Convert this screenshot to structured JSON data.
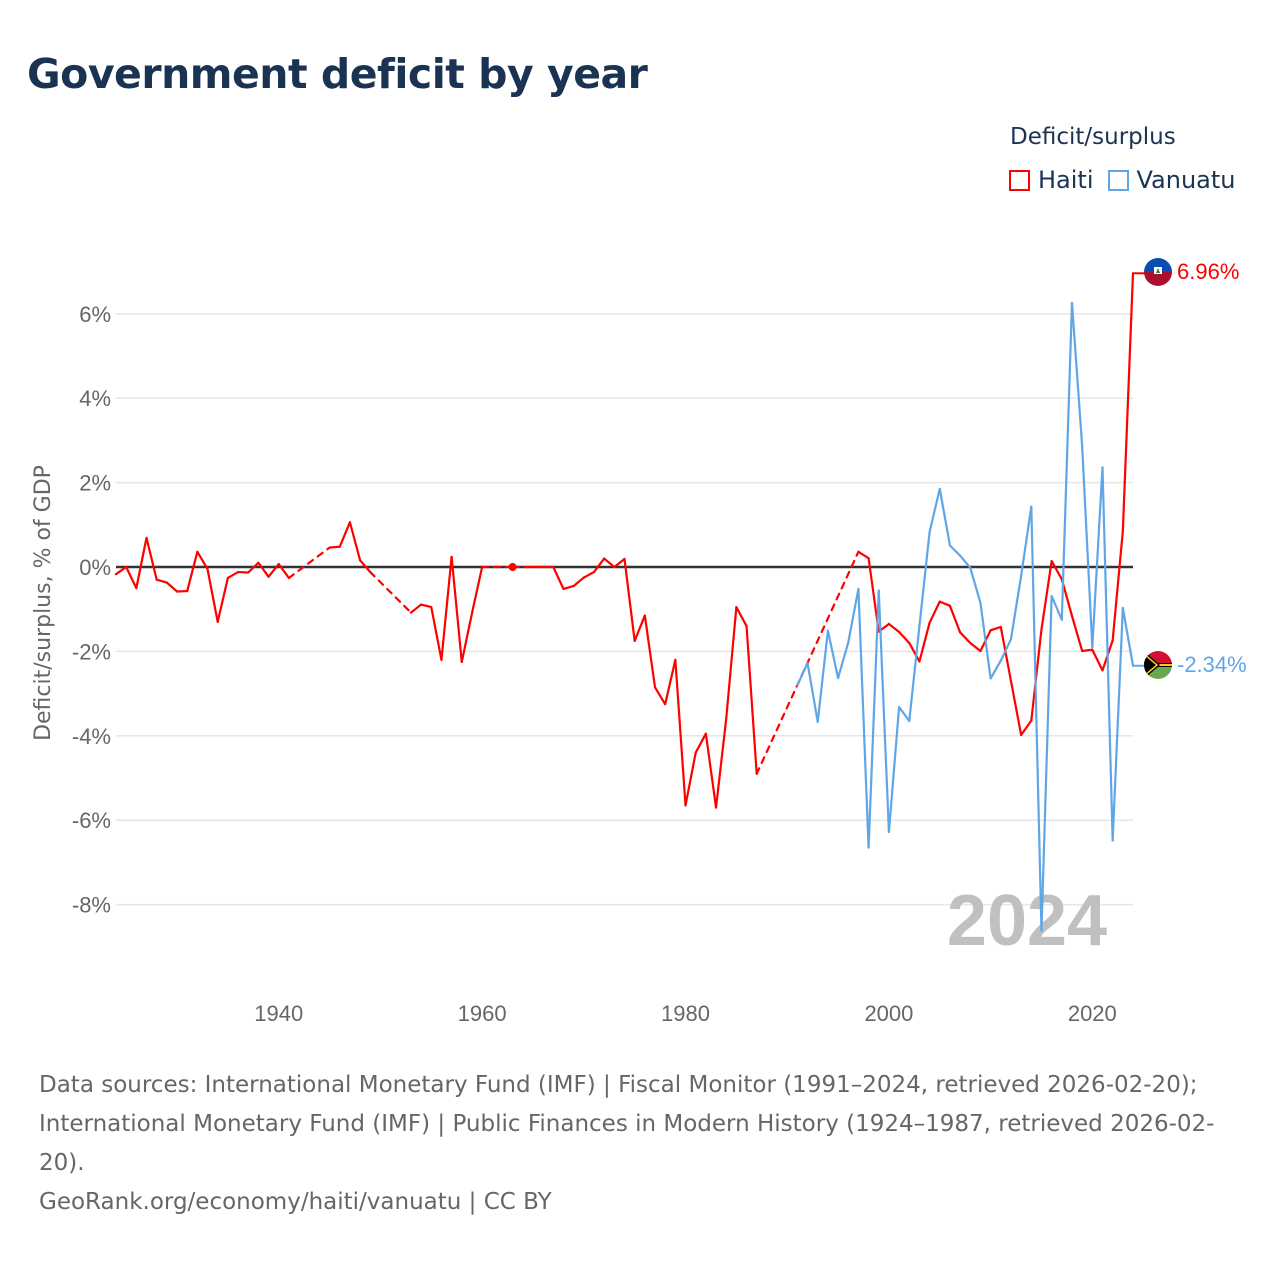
{
  "title": "Government deficit by year",
  "legend": {
    "title": "Deficit/surplus",
    "items": [
      {
        "label": "Haiti",
        "color": "#ff0000"
      },
      {
        "label": "Vanuatu",
        "color": "#5fa6e8"
      }
    ]
  },
  "footer": {
    "sources": "Data sources: International Monetary Fund (IMF) | Fiscal Monitor (1991–2024, retrieved 2026-02-20); International Monetary Fund (IMF) | Public Finances in Modern History (1924–1987, retrieved 2026-02-20).",
    "credit": "GeoRank.org/economy/haiti/vanuatu | CC BY"
  },
  "chart_data": {
    "type": "line",
    "title": "Government deficit by year",
    "ylabel": "Deficit/surplus, % of GDP",
    "xlabel": "",
    "xlim": [
      1924,
      2024
    ],
    "ylim": [
      -9.5,
      7.5
    ],
    "x_ticks": [
      1940,
      1960,
      1980,
      2000,
      2020
    ],
    "x_tick_labels": [
      "1940",
      "1960",
      "1980",
      "2000",
      "2020"
    ],
    "y_ticks": [
      -8,
      -6,
      -4,
      -2,
      0,
      2,
      4,
      6
    ],
    "y_tick_labels": [
      "-8%",
      "-6%",
      "-4%",
      "-2%",
      "0%",
      "2%",
      "4%",
      "6%"
    ],
    "year_watermark": "2024",
    "series": [
      {
        "name": "Haiti",
        "color": "#ff0000",
        "end_label": "6.96%",
        "x": [
          1924,
          1925,
          1926,
          1927,
          1928,
          1929,
          1930,
          1931,
          1932,
          1933,
          1934,
          1935,
          1936,
          1937,
          1938,
          1939,
          1940,
          1941,
          1945,
          1946,
          1947,
          1948,
          1949,
          1953,
          1954,
          1955,
          1956,
          1957,
          1958,
          1959,
          1960,
          1963,
          1965,
          1966,
          1967,
          1968,
          1969,
          1970,
          1971,
          1972,
          1973,
          1974,
          1975,
          1976,
          1977,
          1978,
          1979,
          1980,
          1981,
          1982,
          1983,
          1984,
          1985,
          1986,
          1987,
          1997,
          1998,
          1999,
          2000,
          2001,
          2002,
          2003,
          2004,
          2005,
          2006,
          2007,
          2008,
          2009,
          2010,
          2011,
          2012,
          2013,
          2014,
          2015,
          2016,
          2017,
          2018,
          2019,
          2020,
          2021,
          2022,
          2023,
          2024
        ],
        "values": [
          -0.17,
          0.0,
          -0.5,
          0.69,
          -0.3,
          -0.37,
          -0.58,
          -0.57,
          0.36,
          -0.05,
          -1.3,
          -0.26,
          -0.12,
          -0.13,
          0.1,
          -0.23,
          0.07,
          -0.26,
          0.46,
          0.48,
          1.06,
          0.16,
          -0.12,
          -1.08,
          -0.89,
          -0.95,
          -2.2,
          0.24,
          -2.25,
          -1.1,
          0.0,
          0.0,
          0.0,
          0.0,
          0.0,
          -0.52,
          -0.45,
          -0.25,
          -0.12,
          0.2,
          0.0,
          0.19,
          -1.75,
          -1.15,
          -2.85,
          -3.25,
          -2.2,
          -5.65,
          -4.4,
          -3.95,
          -5.7,
          -3.6,
          -0.95,
          -1.4,
          -4.9,
          0.36,
          0.21,
          -1.53,
          -1.35,
          -1.54,
          -1.8,
          -2.24,
          -1.32,
          -0.82,
          -0.92,
          -1.55,
          -1.8,
          -1.99,
          -1.5,
          -1.42,
          -2.7,
          -3.98,
          -3.64,
          -1.48,
          0.14,
          -0.29,
          -1.16,
          -1.99,
          -1.96,
          -2.45,
          -1.74,
          0.85,
          6.96
        ]
      },
      {
        "name": "Vanuatu",
        "color": "#5fa6e8",
        "end_label": "-2.34%",
        "x": [
          1991,
          1992,
          1993,
          1994,
          1995,
          1996,
          1997,
          1998,
          1999,
          2000,
          2001,
          2002,
          2003,
          2004,
          2005,
          2006,
          2007,
          2008,
          2009,
          2010,
          2011,
          2012,
          2013,
          2014,
          2015,
          2016,
          2017,
          2018,
          2019,
          2020,
          2021,
          2022,
          2023,
          2024
        ],
        "values": [
          -2.8,
          -2.28,
          -3.67,
          -1.51,
          -2.63,
          -1.79,
          -0.52,
          -6.65,
          -0.56,
          -6.28,
          -3.32,
          -3.65,
          -1.4,
          0.83,
          1.85,
          0.51,
          0.27,
          -0.02,
          -0.85,
          -2.64,
          -2.22,
          -1.71,
          -0.21,
          1.43,
          -8.62,
          -0.69,
          -1.25,
          6.26,
          2.87,
          -1.9,
          2.36,
          -6.48,
          -0.97,
          -2.34
        ]
      }
    ]
  }
}
